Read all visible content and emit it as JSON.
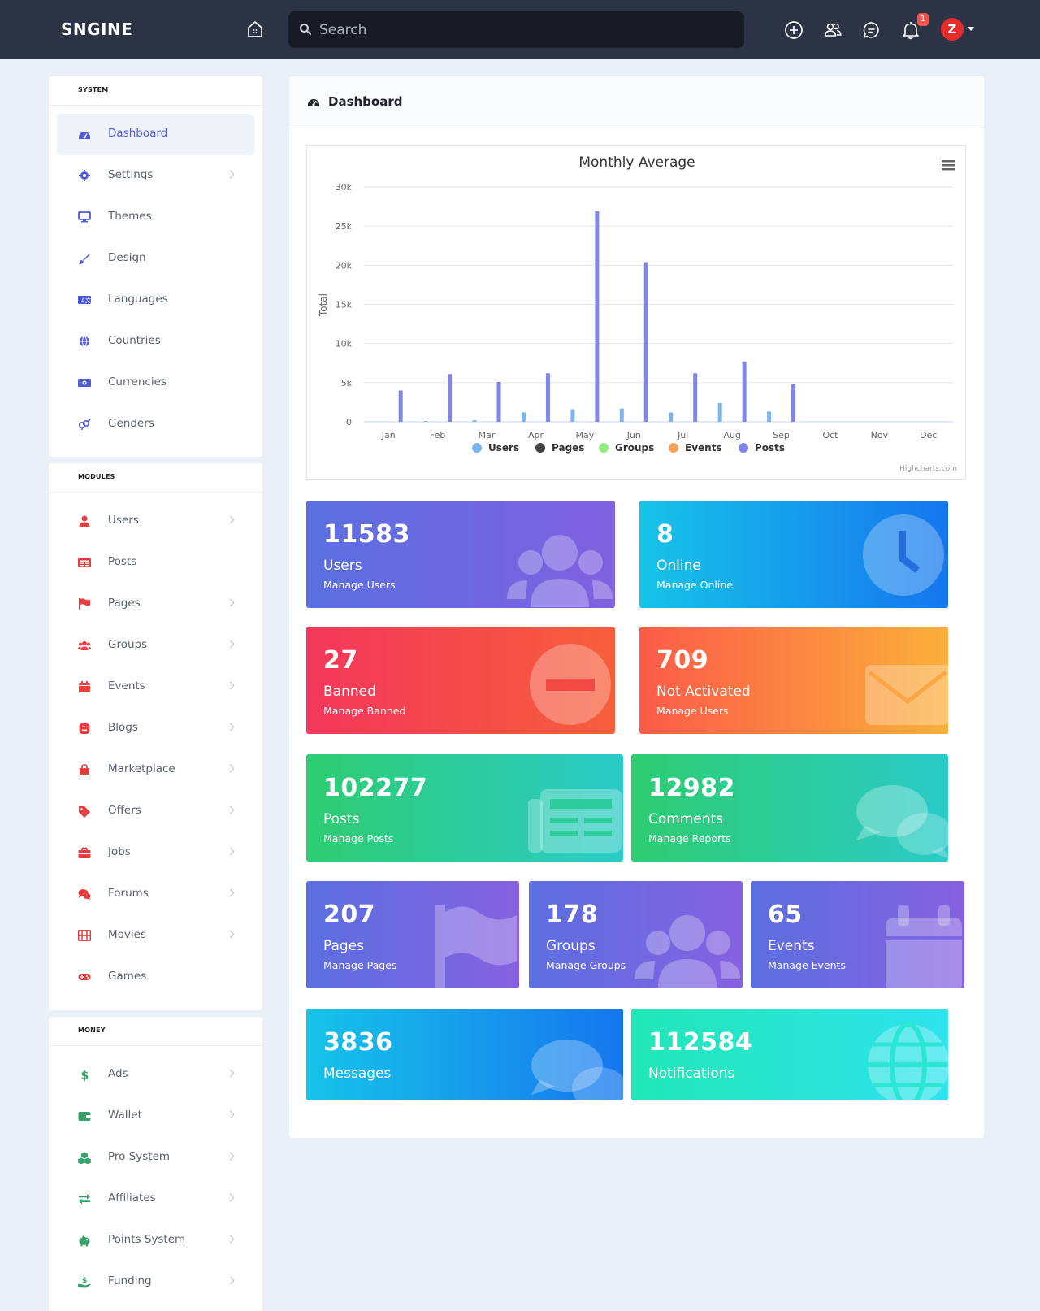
{
  "topbar": {
    "logo": "SNGINE",
    "search_placeholder": "Search",
    "notifications_count": "1",
    "avatar_letter": "Z",
    "icons": [
      "home-icon",
      "search-icon",
      "create-icon",
      "friends-icon",
      "messages-icon",
      "bell-icon"
    ]
  },
  "sidebar": {
    "system": {
      "heading": "SYSTEM",
      "items": [
        {
          "label": "Dashboard",
          "icon": "dashboard-icon",
          "active": true,
          "chevron": false
        },
        {
          "label": "Settings",
          "icon": "gear-icon",
          "chevron": true
        },
        {
          "label": "Themes",
          "icon": "desktop-icon",
          "chevron": false
        },
        {
          "label": "Design",
          "icon": "brush-icon",
          "chevron": false
        },
        {
          "label": "Languages",
          "icon": "language-icon",
          "chevron": false
        },
        {
          "label": "Countries",
          "icon": "globe-icon",
          "chevron": false
        },
        {
          "label": "Currencies",
          "icon": "money-icon",
          "chevron": false
        },
        {
          "label": "Genders",
          "icon": "gender-icon",
          "chevron": false
        }
      ]
    },
    "modules": {
      "heading": "MODULES",
      "items": [
        {
          "label": "Users",
          "icon": "user-icon",
          "chevron": true
        },
        {
          "label": "Posts",
          "icon": "newspaper-icon",
          "chevron": false
        },
        {
          "label": "Pages",
          "icon": "flag-icon",
          "chevron": true
        },
        {
          "label": "Groups",
          "icon": "users-icon",
          "chevron": true
        },
        {
          "label": "Events",
          "icon": "calendar-icon",
          "chevron": true
        },
        {
          "label": "Blogs",
          "icon": "blog-icon",
          "chevron": true
        },
        {
          "label": "Marketplace",
          "icon": "shopping-bag-icon",
          "chevron": true
        },
        {
          "label": "Offers",
          "icon": "tag-icon",
          "chevron": true
        },
        {
          "label": "Jobs",
          "icon": "briefcase-icon",
          "chevron": true
        },
        {
          "label": "Forums",
          "icon": "comments-icon",
          "chevron": true
        },
        {
          "label": "Movies",
          "icon": "film-icon",
          "chevron": true
        },
        {
          "label": "Games",
          "icon": "gamepad-icon",
          "chevron": false
        }
      ]
    },
    "money": {
      "heading": "MONEY",
      "items": [
        {
          "label": "Ads",
          "icon": "dollar-icon",
          "chevron": true
        },
        {
          "label": "Wallet",
          "icon": "wallet-icon",
          "chevron": true
        },
        {
          "label": "Pro System",
          "icon": "cubes-icon",
          "chevron": true
        },
        {
          "label": "Affiliates",
          "icon": "exchange-icon",
          "chevron": true
        },
        {
          "label": "Points System",
          "icon": "piggy-bank-icon",
          "chevron": true
        },
        {
          "label": "Funding",
          "icon": "hand-holding-dollar-icon",
          "chevron": true
        }
      ]
    }
  },
  "main": {
    "title": "Dashboard",
    "tiles": [
      {
        "num": "11583",
        "title": "Users",
        "link": "Manage Users",
        "art": "users-icon",
        "grad": [
          "#5b6fe0",
          "#8061e0"
        ]
      },
      {
        "num": "8",
        "title": "Online",
        "link": "Manage Online",
        "art": "clock-icon",
        "grad": [
          "#16c4e8",
          "#1676ee"
        ]
      },
      {
        "num": "27",
        "title": "Banned",
        "link": "Manage Banned",
        "art": "minus-circle-icon",
        "grad": [
          "#f4365c",
          "#f65f3a"
        ]
      },
      {
        "num": "709",
        "title": "Not Activated",
        "link": "Manage Users",
        "art": "envelope-icon",
        "grad": [
          "#fb5b49",
          "#fbb03b"
        ]
      },
      {
        "num": "102277",
        "title": "Posts",
        "link": "Manage Posts",
        "art": "newspaper-icon",
        "grad": [
          "#2ecc71",
          "#2bcbc9"
        ]
      },
      {
        "num": "12982",
        "title": "Comments",
        "link": "Manage Reports",
        "art": "comments-icon",
        "grad": [
          "#2ecc71",
          "#2bcbc9"
        ]
      },
      {
        "num": "207",
        "title": "Pages",
        "link": "Manage Pages",
        "art": "flag-icon",
        "grad": [
          "#5b6fe0",
          "#8661e0"
        ]
      },
      {
        "num": "178",
        "title": "Groups",
        "link": "Manage Groups",
        "art": "users-icon",
        "grad": [
          "#5b6fe0",
          "#8661e0"
        ]
      },
      {
        "num": "65",
        "title": "Events",
        "link": "Manage Events",
        "art": "calendar-icon",
        "grad": [
          "#5b6fe0",
          "#8661e0"
        ]
      },
      {
        "num": "3836",
        "title": "Messages",
        "link": "",
        "art": "comments-icon",
        "grad": [
          "#16c4e8",
          "#1676ee"
        ]
      },
      {
        "num": "112584",
        "title": "Notifications",
        "link": "",
        "art": "globe-icon",
        "grad": [
          "#21e7b6",
          "#2ee3ee"
        ]
      }
    ]
  },
  "chart_data": {
    "type": "bar",
    "title": "Monthly Average",
    "ylabel": "Total",
    "xlabel": "",
    "ylim": [
      0,
      30000
    ],
    "yticks": [
      "0",
      "5k",
      "10k",
      "15k",
      "20k",
      "25k",
      "30k"
    ],
    "categories": [
      "Jan",
      "Feb",
      "Mar",
      "Apr",
      "May",
      "Jun",
      "Jul",
      "Aug",
      "Sep",
      "Oct",
      "Nov",
      "Dec"
    ],
    "series": [
      {
        "name": "Users",
        "color": "#7cb5ec",
        "values": [
          0,
          100,
          200,
          1200,
          1600,
          1700,
          1200,
          2400,
          1300,
          0,
          0,
          0
        ]
      },
      {
        "name": "Pages",
        "color": "#434348",
        "values": [
          0,
          0,
          0,
          0,
          0,
          0,
          0,
          0,
          0,
          0,
          0,
          0
        ]
      },
      {
        "name": "Groups",
        "color": "#90ed7d",
        "values": [
          0,
          0,
          0,
          0,
          0,
          0,
          0,
          0,
          0,
          0,
          0,
          0
        ]
      },
      {
        "name": "Events",
        "color": "#f7a35c",
        "values": [
          0,
          0,
          0,
          0,
          0,
          0,
          0,
          0,
          0,
          0,
          0,
          0
        ]
      },
      {
        "name": "Posts",
        "color": "#8085e9",
        "values": [
          4000,
          6100,
          5100,
          6200,
          26900,
          20400,
          6200,
          7700,
          4800,
          0,
          0,
          0
        ]
      }
    ],
    "legend_position": "bottom-center",
    "grid": true,
    "credits": "Highcharts.com"
  }
}
